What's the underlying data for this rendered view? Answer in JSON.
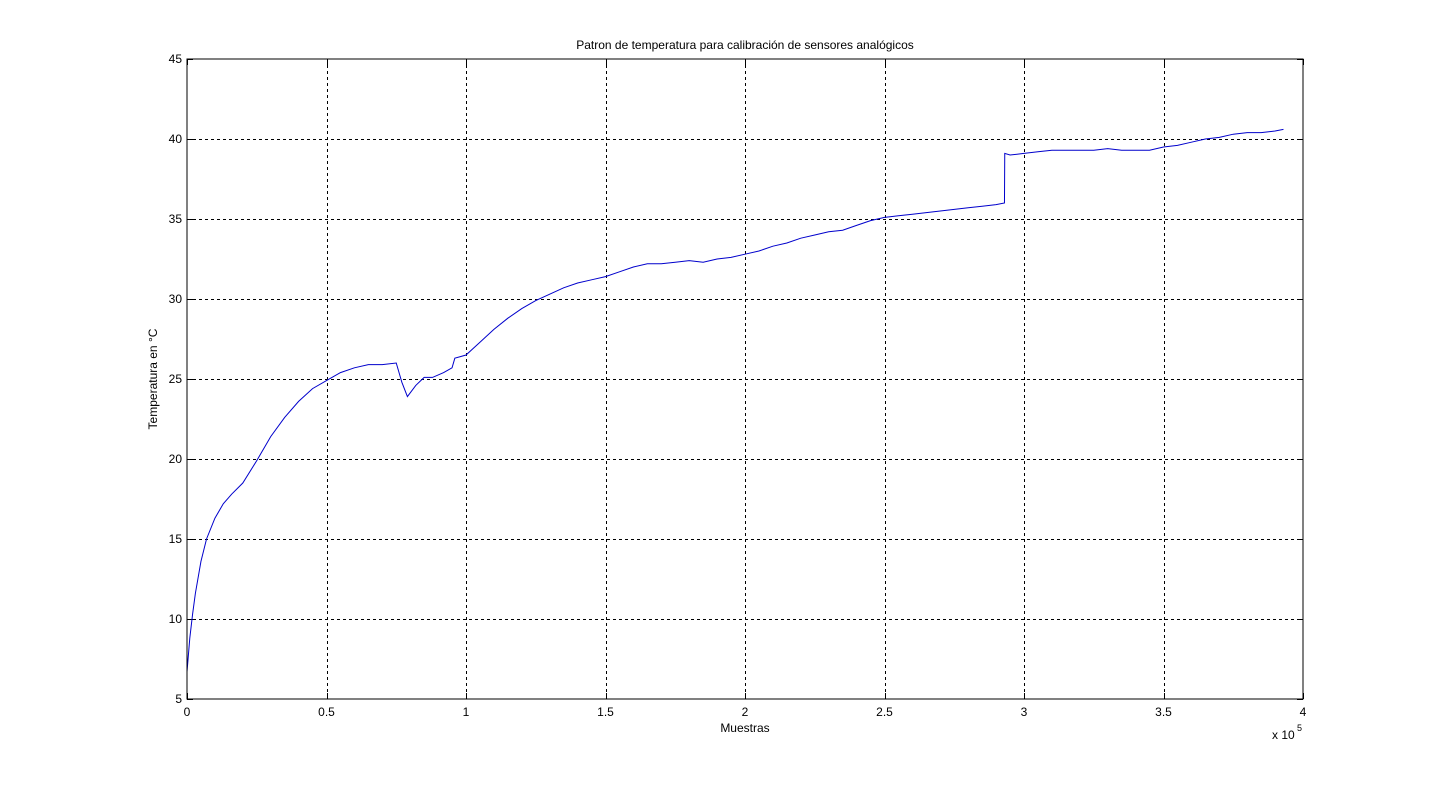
{
  "chart_data": {
    "type": "line",
    "title": "Patron de temperatura para calibración de sensores analógicos",
    "xlabel": "Muestras",
    "ylabel": "Temperatura en °C",
    "xlim": [
      0,
      4
    ],
    "ylim": [
      5,
      45
    ],
    "x_ticks": [
      0,
      0.5,
      1,
      1.5,
      2,
      2.5,
      3,
      3.5,
      4
    ],
    "x_tick_labels": [
      "0",
      "0.5",
      "1",
      "1.5",
      "2",
      "2.5",
      "3",
      "3.5",
      "4"
    ],
    "y_ticks": [
      5,
      10,
      15,
      20,
      25,
      30,
      35,
      40,
      45
    ],
    "y_tick_labels": [
      "5",
      "10",
      "15",
      "20",
      "25",
      "30",
      "35",
      "40",
      "45"
    ],
    "x_exponent_base": "x 10",
    "x_exponent_power": "5",
    "grid": true,
    "series": [
      {
        "color": "#0000cc",
        "x": [
          0,
          0.01,
          0.02,
          0.03,
          0.05,
          0.07,
          0.1,
          0.13,
          0.16,
          0.2,
          0.25,
          0.28,
          0.3,
          0.35,
          0.4,
          0.45,
          0.5,
          0.55,
          0.6,
          0.65,
          0.7,
          0.75,
          0.77,
          0.79,
          0.82,
          0.85,
          0.88,
          0.92,
          0.95,
          0.96,
          0.98,
          1.0,
          1.05,
          1.1,
          1.15,
          1.2,
          1.25,
          1.3,
          1.35,
          1.4,
          1.45,
          1.5,
          1.55,
          1.6,
          1.65,
          1.7,
          1.75,
          1.8,
          1.85,
          1.9,
          1.95,
          2.0,
          2.05,
          2.1,
          2.15,
          2.2,
          2.25,
          2.3,
          2.35,
          2.4,
          2.45,
          2.5,
          2.55,
          2.6,
          2.65,
          2.7,
          2.75,
          2.8,
          2.85,
          2.9,
          2.93,
          2.931,
          2.95,
          3.0,
          3.05,
          3.1,
          3.15,
          3.2,
          3.25,
          3.3,
          3.35,
          3.4,
          3.45,
          3.5,
          3.55,
          3.6,
          3.65,
          3.7,
          3.75,
          3.8,
          3.85,
          3.9,
          3.93
        ],
        "y": [
          6.7,
          8.8,
          10.3,
          11.6,
          13.6,
          15.0,
          16.3,
          17.2,
          17.8,
          18.5,
          19.9,
          20.8,
          21.4,
          22.6,
          23.6,
          24.4,
          24.9,
          25.4,
          25.7,
          25.9,
          25.9,
          26.0,
          24.8,
          23.9,
          24.6,
          25.1,
          25.1,
          25.4,
          25.7,
          26.3,
          26.4,
          26.5,
          27.3,
          28.1,
          28.8,
          29.4,
          29.9,
          30.3,
          30.7,
          31.0,
          31.2,
          31.4,
          31.7,
          32.0,
          32.2,
          32.2,
          32.3,
          32.4,
          32.3,
          32.5,
          32.6,
          32.8,
          33.0,
          33.3,
          33.5,
          33.8,
          34.0,
          34.2,
          34.3,
          34.6,
          34.9,
          35.1,
          35.2,
          35.3,
          35.4,
          35.5,
          35.6,
          35.7,
          35.8,
          35.9,
          36.0,
          39.1,
          39.0,
          39.1,
          39.2,
          39.3,
          39.3,
          39.3,
          39.3,
          39.4,
          39.3,
          39.3,
          39.3,
          39.5,
          39.6,
          39.8,
          40.0,
          40.1,
          40.3,
          40.4,
          40.4,
          40.5,
          40.6
        ]
      }
    ]
  }
}
